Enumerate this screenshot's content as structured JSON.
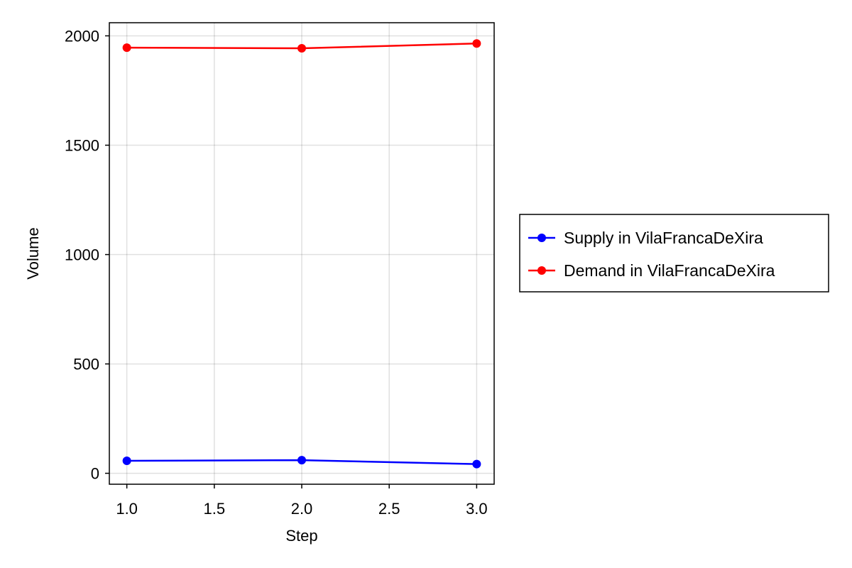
{
  "chart_data": {
    "type": "line",
    "title": "",
    "xlabel": "Step",
    "ylabel": "Volume",
    "x": [
      1.0,
      2.0,
      3.0
    ],
    "xlim": [
      0.9,
      3.1
    ],
    "ylim": [
      -50,
      2060
    ],
    "xticks": [
      1.0,
      1.5,
      2.0,
      2.5,
      3.0
    ],
    "xtick_labels": [
      "1.0",
      "1.5",
      "2.0",
      "2.5",
      "3.0"
    ],
    "yticks": [
      0,
      500,
      1000,
      1500,
      2000
    ],
    "ytick_labels": [
      "0",
      "500",
      "1000",
      "1500",
      "2000"
    ],
    "grid": true,
    "legend_position": "right",
    "series": [
      {
        "name": "Supply in VilaFrancaDeXira",
        "color": "#0000ff",
        "values": [
          57,
          60,
          42
        ]
      },
      {
        "name": "Demand in VilaFrancaDeXira",
        "color": "#ff0000",
        "values": [
          1946,
          1943,
          1965
        ]
      }
    ]
  }
}
